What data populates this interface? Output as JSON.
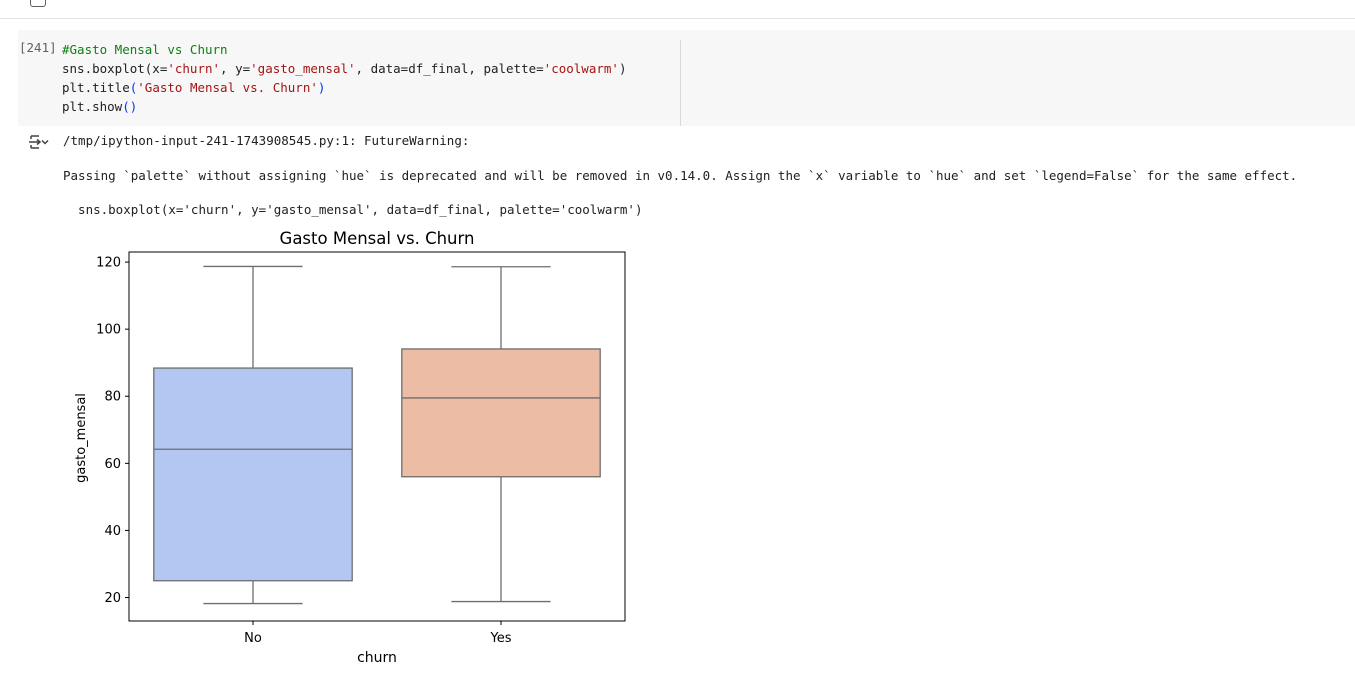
{
  "cell": {
    "execution_count": "[241]",
    "code": {
      "comment": "#Gasto Mensal vs Churn",
      "line2_a": "sns.boxplot(x=",
      "line2_s1": "'churn'",
      "line2_b": ", y=",
      "line2_s2": "'gasto_mensal'",
      "line2_c": ", data=df_final, palette=",
      "line2_s3": "'coolwarm'",
      "line2_d": ")",
      "line3_a": "plt.title",
      "line3_p1": "(",
      "line3_s": "'Gasto Mensal vs. Churn'",
      "line3_p2": ")",
      "line4_a": "plt.show",
      "line4_p": "()"
    }
  },
  "output": {
    "warning_path": "/tmp/ipython-input-241-1743908545.py:1: FutureWarning:",
    "warning_message": "Passing `palette` without assigning `hue` is deprecated and will be removed in v0.14.0. Assign the `x` variable to `hue` and set `legend=False` for the same effect.",
    "warning_code": "  sns.boxplot(x='churn', y='gasto_mensal', data=df_final, palette='coolwarm')"
  },
  "chart_data": {
    "type": "box",
    "title": "Gasto Mensal vs. Churn",
    "xlabel": "churn",
    "ylabel": "gasto_mensal",
    "categories": [
      "No",
      "Yes"
    ],
    "ylim": [
      13,
      123
    ],
    "yticks": [
      20,
      40,
      60,
      80,
      100,
      120
    ],
    "boxes": [
      {
        "category": "No",
        "whislo": 18.2,
        "q1": 25.0,
        "median": 64.2,
        "q3": 88.4,
        "whishi": 118.7,
        "color": "#b3c7f2"
      },
      {
        "category": "Yes",
        "whislo": 18.8,
        "q1": 56.0,
        "median": 79.5,
        "q3": 94.1,
        "whishi": 118.6,
        "color": "#ecbca5"
      }
    ]
  }
}
